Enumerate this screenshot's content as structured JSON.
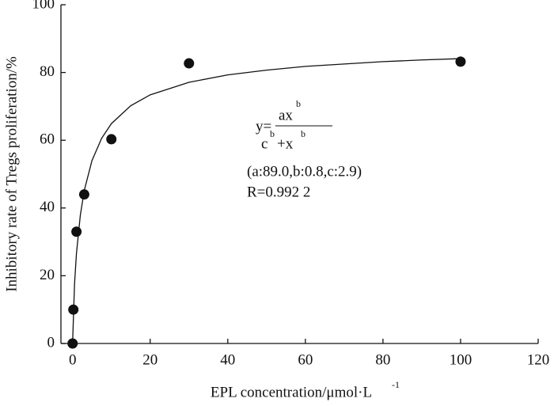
{
  "chart_data": {
    "type": "scatter",
    "xlabel": "EPL concentration/μmol·L",
    "xlabel_sup": "-1",
    "ylabel": "Inhibitory rate of Tregs proliferation/%",
    "xlim": [
      -3,
      120
    ],
    "ylim": [
      0,
      100
    ],
    "xticks": [
      0,
      20,
      40,
      60,
      80,
      100,
      120
    ],
    "yticks": [
      0,
      20,
      40,
      60,
      80,
      100
    ],
    "series": [
      {
        "type": "scatter",
        "color": "#111111",
        "x": [
          0,
          0.2,
          1,
          3,
          10,
          30,
          100
        ],
        "values": [
          0,
          10,
          33,
          44,
          60.3,
          82.7,
          83.2
        ]
      },
      {
        "type": "line",
        "color": "#111111",
        "x": [
          0,
          0.5,
          1,
          2,
          3,
          5,
          7.5,
          10,
          15,
          20,
          30,
          40,
          50,
          60,
          70,
          80,
          90,
          100
        ],
        "values": [
          0,
          17.5,
          26.6,
          37.9,
          45.1,
          54.0,
          60.6,
          64.9,
          70.2,
          73.4,
          77.1,
          79.3,
          80.7,
          81.8,
          82.5,
          83.2,
          83.7,
          84.1
        ]
      }
    ],
    "equation": {
      "lhs": "y=",
      "num": "ax",
      "num_exp": "b",
      "den_c": "c",
      "den_c_exp": "b",
      "den_x": "+x",
      "den_x_exp": "b"
    },
    "params": "(a:89.0,b:0.8,c:2.9)",
    "r_label": "R=0.992 2"
  }
}
